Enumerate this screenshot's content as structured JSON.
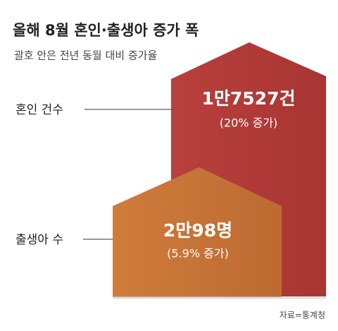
{
  "header": {
    "title": "올해 8월 혼인·출생아 증가 폭",
    "subtitle": "괄호 안은 전년 동월 대비 증가율"
  },
  "items": [
    {
      "label": "혼인 건수",
      "count": "1만7527건",
      "change": "(20% 증가)"
    },
    {
      "label": "출생아 수",
      "count": "2만98명",
      "change": "(5.9% 증가)"
    }
  ],
  "footer": {
    "source": "자료=통계청"
  }
}
